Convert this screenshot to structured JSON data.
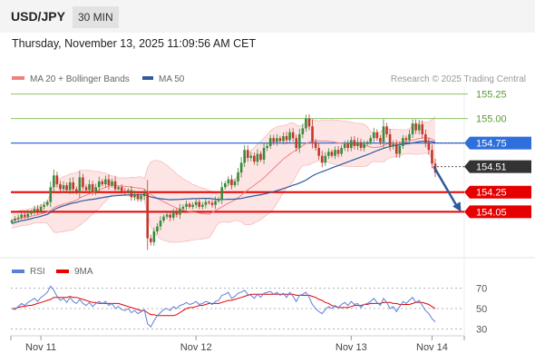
{
  "header": {
    "symbol": "USD/JPY",
    "timeframe": "30 MIN",
    "datetime": "Thursday, November 13, 2025 11:09:56 AM CET"
  },
  "colors": {
    "bullish": "#3a8a3a",
    "bearish": "#c0392b",
    "ma20": "#f08080",
    "bollinger_fill": "#fde0e0",
    "ma50": "#2e5a9c",
    "resistance_green": "#8dc26b",
    "pivot_blue": "#2f6fdb",
    "support_red": "#e60000",
    "last_price": "#333333",
    "rsi": "#5b7fdb",
    "rsi_ma": "#e60000",
    "arrow": "#2e5a9c"
  },
  "chart_data": [
    {
      "type": "candlestick",
      "legend": [
        {
          "name": "MA 20 + Bollinger Bands",
          "color": "#f08080"
        },
        {
          "name": "MA 50",
          "color": "#2e5a9c"
        }
      ],
      "source": "Research © 2025 Trading Central",
      "ylim": [
        153.6,
        155.32
      ],
      "x_ticks": [
        {
          "label": "Nov 11",
          "bar": 9
        },
        {
          "label": "Nov 12",
          "bar": 57
        },
        {
          "label": "Nov 13",
          "bar": 105
        },
        {
          "label": "Nov 14",
          "bar": 130
        }
      ],
      "levels": [
        {
          "value": 155.25,
          "label": "155.25",
          "kind": "resistance"
        },
        {
          "value": 155.0,
          "label": "155.00",
          "kind": "resistance"
        },
        {
          "value": 154.75,
          "label": "154.75",
          "kind": "pivot"
        },
        {
          "value": 154.51,
          "label": "154.51",
          "kind": "last"
        },
        {
          "value": 154.25,
          "label": "154.25",
          "kind": "support"
        },
        {
          "value": 154.05,
          "label": "154.05",
          "kind": "support"
        }
      ],
      "arrow": {
        "from": [
          130,
          154.51
        ],
        "to": [
          139,
          154.05
        ]
      },
      "closes": [
        153.96,
        153.98,
        153.99,
        154.02,
        154.0,
        154.03,
        154.05,
        154.08,
        154.06,
        154.1,
        154.12,
        154.15,
        154.3,
        154.42,
        154.33,
        154.28,
        154.32,
        154.27,
        154.35,
        154.28,
        154.25,
        154.4,
        154.3,
        154.27,
        154.33,
        154.25,
        154.3,
        154.36,
        154.33,
        154.38,
        154.32,
        154.36,
        154.28,
        154.3,
        154.26,
        154.25,
        154.27,
        154.2,
        154.23,
        154.18,
        154.21,
        154.24,
        153.78,
        153.74,
        153.85,
        153.9,
        153.96,
        154.0,
        154.02,
        153.99,
        154.05,
        154.02,
        154.08,
        154.1,
        154.13,
        154.1,
        154.12,
        154.15,
        154.1,
        154.12,
        154.15,
        154.14,
        154.12,
        154.16,
        154.18,
        154.3,
        154.34,
        154.38,
        154.32,
        154.36,
        154.45,
        154.55,
        154.68,
        154.6,
        154.62,
        154.56,
        154.64,
        154.58,
        154.7,
        154.72,
        154.8,
        154.76,
        154.8,
        154.77,
        154.82,
        154.78,
        154.86,
        154.8,
        154.7,
        154.84,
        154.9,
        155.0,
        154.92,
        154.76,
        154.7,
        154.62,
        154.55,
        154.62,
        154.66,
        154.62,
        154.68,
        154.64,
        154.7,
        154.74,
        154.7,
        154.78,
        154.72,
        154.76,
        154.7,
        154.74,
        154.76,
        154.8,
        154.86,
        154.8,
        154.76,
        154.92,
        154.84,
        154.72,
        154.74,
        154.64,
        154.72,
        154.8,
        154.78,
        154.84,
        154.95,
        154.88,
        154.94,
        154.84,
        154.75,
        154.68,
        154.54,
        154.45
      ],
      "rsi": {
        "legend": [
          {
            "name": "RSI",
            "color": "#5b7fdb"
          },
          {
            "name": "9MA",
            "color": "#e60000"
          }
        ],
        "ylim": [
          25,
          75
        ],
        "ticks": [
          70,
          50,
          30
        ],
        "values": [
          50,
          49,
          52,
          55,
          53,
          56,
          58,
          60,
          57,
          61,
          63,
          66,
          72,
          68,
          62,
          58,
          60,
          56,
          61,
          57,
          55,
          59,
          55,
          53,
          56,
          52,
          55,
          57,
          55,
          57,
          53,
          55,
          50,
          52,
          49,
          48,
          50,
          46,
          48,
          45,
          47,
          49,
          35,
          32,
          38,
          43,
          46,
          49,
          50,
          48,
          52,
          50,
          53,
          54,
          56,
          54,
          55,
          57,
          54,
          55,
          57,
          56,
          54,
          57,
          58,
          63,
          64,
          66,
          60,
          62,
          65,
          66,
          68,
          64,
          63,
          60,
          64,
          61,
          65,
          66,
          67,
          64,
          66,
          63,
          65,
          61,
          66,
          62,
          57,
          63,
          64,
          66,
          61,
          54,
          50,
          47,
          45,
          49,
          52,
          50,
          53,
          51,
          54,
          56,
          53,
          57,
          54,
          55,
          51,
          54,
          55,
          57,
          60,
          56,
          53,
          60,
          56,
          50,
          52,
          47,
          52,
          57,
          55,
          58,
          61,
          56,
          58,
          53,
          48,
          45,
          40,
          37
        ],
        "ma": [
          50,
          50,
          51,
          52,
          52,
          53,
          53,
          54,
          55,
          56,
          57,
          58,
          59,
          61,
          61,
          61,
          61,
          61,
          62,
          61,
          61,
          60,
          59,
          58,
          57,
          56,
          56,
          55,
          55,
          55,
          55,
          55,
          55,
          55,
          54,
          53,
          52,
          51,
          50,
          49,
          48,
          48,
          46,
          44,
          44,
          43,
          43,
          43,
          43,
          43,
          43,
          44,
          46,
          48,
          50,
          51,
          51,
          52,
          53,
          53,
          54,
          55,
          55,
          55,
          55,
          56,
          57,
          58,
          58,
          59,
          60,
          61,
          62,
          63,
          64,
          64,
          64,
          64,
          64,
          64,
          64,
          64,
          64,
          64,
          64,
          64,
          64,
          64,
          63,
          63,
          63,
          63,
          63,
          62,
          61,
          59,
          58,
          56,
          55,
          53,
          52,
          51,
          51,
          51,
          51,
          52,
          53,
          53,
          53,
          54,
          54,
          55,
          55,
          55,
          55,
          56,
          56,
          56,
          55,
          55,
          54,
          54,
          54,
          54,
          55,
          56,
          56,
          56,
          55,
          54,
          52,
          50
        ]
      }
    }
  ]
}
